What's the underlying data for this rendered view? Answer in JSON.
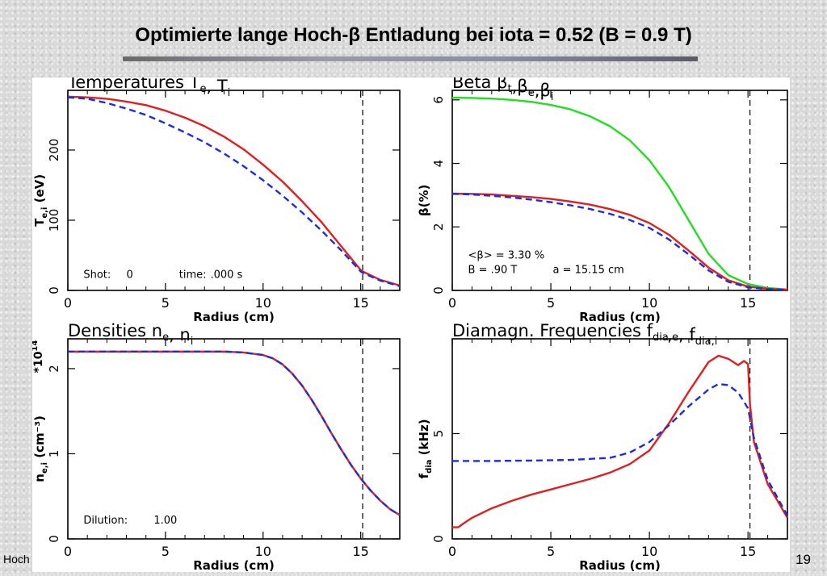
{
  "slide": {
    "title": "Optimierte lange Hoch-β Entladung bei iota = 0.52 (B = 0.9 T)",
    "footer": "Hoch",
    "page_number": "19"
  },
  "colors": {
    "red": "#e02020",
    "blue": "#1a2ee0",
    "green": "#22dd22",
    "frame": "#000000"
  },
  "chart_data": [
    {
      "type": "line",
      "title": "Temperatures T",
      "title_subs": [
        "e",
        "i"
      ],
      "ylabel": "T",
      "ylabel_sub": "e,i",
      "ylabel_unit": "(eV)",
      "xlabel": "Radius (cm)",
      "xlim": [
        0,
        17
      ],
      "ylim": [
        0,
        285
      ],
      "xticks": [
        0,
        5,
        10,
        15
      ],
      "yticks": [
        0,
        100,
        200
      ],
      "vline_x": 15.1,
      "annotations": [
        {
          "text": "Shot:",
          "x": 0.8,
          "y": 18
        },
        {
          "text": "0",
          "x": 3.0,
          "y": 18
        },
        {
          "text": "time:",
          "x": 5.7,
          "y": 18
        },
        {
          "text": ".000 s",
          "x": 7.3,
          "y": 18
        }
      ],
      "series": [
        {
          "color": "red",
          "dashed": false,
          "x": [
            0,
            1,
            2,
            3,
            4,
            5,
            6,
            7,
            8,
            9,
            10,
            11,
            12,
            13,
            14,
            15,
            15.1,
            16,
            17
          ],
          "y": [
            276,
            275,
            273,
            269,
            264,
            256,
            246,
            234,
            219,
            201,
            179,
            155,
            127,
            97,
            63,
            29,
            27,
            15,
            7
          ]
        },
        {
          "color": "blue",
          "dashed": true,
          "x": [
            0,
            1,
            2,
            3,
            4,
            5,
            6,
            7,
            8,
            9,
            10,
            11,
            12,
            13,
            14,
            15,
            15.1,
            16,
            17
          ],
          "y": [
            275,
            273,
            267,
            259,
            250,
            238,
            225,
            211,
            195,
            177,
            157,
            135,
            111,
            85,
            57,
            27,
            25,
            14,
            6
          ]
        }
      ]
    },
    {
      "type": "line",
      "title": "Beta β",
      "title_subs": [
        "t",
        "e",
        "i"
      ],
      "ylabel": "β(%)",
      "xlabel": "Radius (cm)",
      "xlim": [
        0,
        17
      ],
      "ylim": [
        0,
        6.3
      ],
      "xticks": [
        0,
        5,
        10,
        15
      ],
      "yticks": [
        0,
        2,
        4,
        6
      ],
      "vline_x": 15.1,
      "annotations": [
        {
          "text": "<β> = 3.30  %",
          "x": 0.8,
          "y": 1.0
        },
        {
          "text": "B = .90  T",
          "x": 0.8,
          "y": 0.55
        },
        {
          "text": "a = 15.15 cm",
          "x": 5.1,
          "y": 0.55
        }
      ],
      "series": [
        {
          "color": "green",
          "dashed": false,
          "x": [
            0,
            1,
            2,
            3,
            4,
            5,
            6,
            7,
            8,
            9,
            10,
            11,
            12,
            13,
            14,
            15,
            16,
            17
          ],
          "y": [
            6.07,
            6.06,
            6.04,
            6.0,
            5.94,
            5.84,
            5.7,
            5.48,
            5.17,
            4.73,
            4.1,
            3.25,
            2.2,
            1.15,
            0.48,
            0.2,
            0.08,
            0.03
          ]
        },
        {
          "color": "red",
          "dashed": false,
          "x": [
            0,
            1,
            2,
            3,
            4,
            5,
            6,
            7,
            8,
            9,
            10,
            11,
            12,
            13,
            14,
            15,
            16,
            17
          ],
          "y": [
            3.05,
            3.04,
            3.02,
            2.98,
            2.94,
            2.88,
            2.8,
            2.7,
            2.56,
            2.38,
            2.12,
            1.75,
            1.25,
            0.72,
            0.32,
            0.12,
            0.05,
            0.02
          ]
        },
        {
          "color": "blue",
          "dashed": true,
          "x": [
            0,
            1,
            2,
            3,
            4,
            5,
            6,
            7,
            8,
            9,
            10,
            11,
            12,
            13,
            14,
            15,
            16,
            17
          ],
          "y": [
            3.04,
            3.02,
            2.98,
            2.93,
            2.86,
            2.78,
            2.68,
            2.56,
            2.41,
            2.22,
            1.97,
            1.6,
            1.13,
            0.63,
            0.27,
            0.1,
            0.04,
            0.01
          ]
        }
      ]
    },
    {
      "type": "line",
      "title": "Densities n",
      "title_subs": [
        "e",
        "i"
      ],
      "ylabel": "n",
      "ylabel_sub": "e,i",
      "ylabel_unit": "(cm⁻³)",
      "multiplier": "*10",
      "multiplier_exp": "14",
      "xlabel": "Radius (cm)",
      "xlim": [
        0,
        17
      ],
      "ylim": [
        0,
        2.35
      ],
      "xticks": [
        0,
        5,
        10,
        15
      ],
      "yticks": [
        0,
        1,
        2
      ],
      "vline_x": 15.1,
      "annotations": [
        {
          "text": "Dilution:",
          "x": 0.8,
          "y": 0.18
        },
        {
          "text": "1.00",
          "x": 4.4,
          "y": 0.18
        }
      ],
      "series": [
        {
          "color": "red",
          "dashed": false,
          "x": [
            0,
            2,
            4,
            6,
            8,
            9,
            10,
            10.5,
            11,
            11.5,
            12,
            12.5,
            13,
            13.5,
            14,
            14.5,
            15,
            15.5,
            16,
            16.5,
            17
          ],
          "y": [
            2.2,
            2.2,
            2.2,
            2.2,
            2.2,
            2.19,
            2.16,
            2.12,
            2.05,
            1.94,
            1.8,
            1.63,
            1.44,
            1.24,
            1.05,
            0.87,
            0.71,
            0.57,
            0.45,
            0.35,
            0.28
          ]
        },
        {
          "color": "blue",
          "dashed": true,
          "x": [
            0,
            2,
            4,
            6,
            8,
            9,
            10,
            10.5,
            11,
            11.5,
            12,
            12.5,
            13,
            13.5,
            14,
            14.5,
            15,
            15.5,
            16,
            16.5,
            17
          ],
          "y": [
            2.2,
            2.2,
            2.2,
            2.2,
            2.2,
            2.19,
            2.16,
            2.12,
            2.05,
            1.94,
            1.8,
            1.63,
            1.44,
            1.24,
            1.05,
            0.87,
            0.71,
            0.57,
            0.45,
            0.35,
            0.28
          ]
        }
      ]
    },
    {
      "type": "line",
      "title": "Diamagn. Frequencies f",
      "title_subs": [
        "dia,e",
        "dia,i"
      ],
      "ylabel": "f",
      "ylabel_sub": "dia",
      "ylabel_unit": "(kHz)",
      "xlabel": "Radius (cm)",
      "xlim": [
        0,
        17
      ],
      "ylim": [
        0,
        9.5
      ],
      "xticks": [
        0,
        5,
        10,
        15
      ],
      "yticks": [
        0,
        5
      ],
      "vline_x": 15.1,
      "annotations": [],
      "series": [
        {
          "color": "red",
          "dashed": false,
          "x": [
            0,
            0.3,
            0.6,
            1,
            2,
            3,
            4,
            5,
            6,
            7,
            8,
            9,
            10,
            11,
            12,
            13,
            13.5,
            14,
            14.5,
            14.8,
            15,
            15.1,
            15.3,
            16,
            17
          ],
          "y": [
            0.55,
            0.55,
            0.75,
            1.0,
            1.45,
            1.8,
            2.1,
            2.35,
            2.6,
            2.85,
            3.15,
            3.55,
            4.2,
            5.5,
            7.0,
            8.4,
            8.7,
            8.55,
            8.25,
            8.45,
            8.3,
            6.4,
            4.6,
            2.6,
            1.0
          ]
        },
        {
          "color": "blue",
          "dashed": true,
          "x": [
            0,
            2,
            4,
            6,
            8,
            9,
            10,
            11,
            12,
            13,
            13.5,
            14,
            14.5,
            15,
            15.3,
            16,
            17
          ],
          "y": [
            3.7,
            3.7,
            3.72,
            3.75,
            3.85,
            4.1,
            4.6,
            5.4,
            6.3,
            7.1,
            7.35,
            7.3,
            6.95,
            6.2,
            4.8,
            2.8,
            1.1
          ]
        }
      ]
    }
  ]
}
